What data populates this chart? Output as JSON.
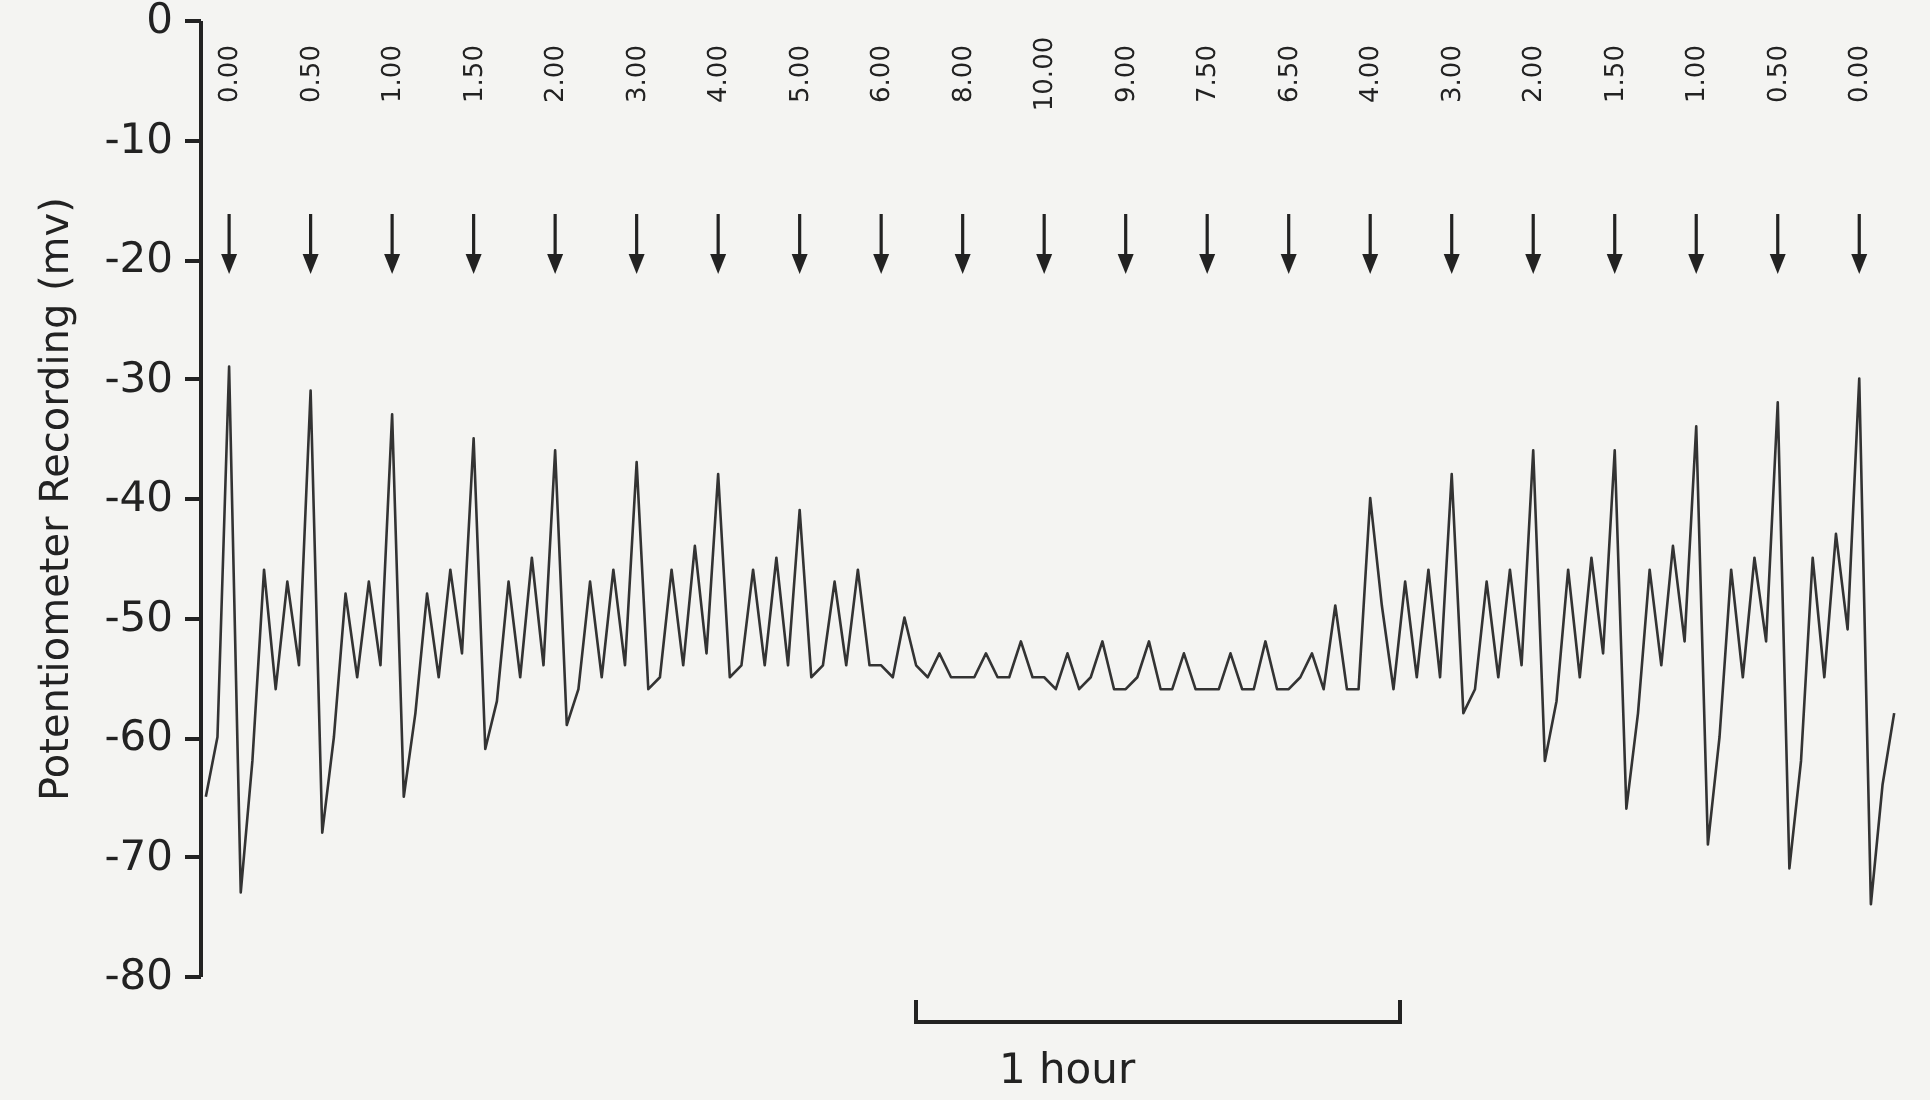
{
  "chart_data": {
    "type": "line",
    "ylabel": "Potentiometer Recording (mv)",
    "xlabel": "1 hour",
    "ylim": [
      -80,
      0
    ],
    "yticks": [
      0,
      -10,
      -20,
      -30,
      -40,
      -50,
      -60,
      -70,
      -80
    ],
    "grid": false,
    "tick_labels": "y",
    "color": "#333333",
    "annotations": [
      "0.00",
      "0.50",
      "1.00",
      "1.50",
      "2.00",
      "3.00",
      "4.00",
      "5.00",
      "6.00",
      "8.00",
      "10.00",
      "9.00",
      "7.50",
      "6.50",
      "4.00",
      "3.00",
      "2.00",
      "1.50",
      "1.00",
      "0.50",
      "0.00"
    ],
    "categories": [
      null,
      null,
      null,
      null,
      null,
      null,
      null,
      null,
      null,
      null,
      null,
      null,
      null,
      null,
      null,
      null,
      null,
      null,
      null,
      null,
      null,
      null,
      null,
      null,
      null,
      null,
      null,
      null,
      null,
      null,
      null,
      null,
      null,
      null,
      null,
      null,
      null,
      null,
      null,
      null,
      null,
      null,
      null,
      null,
      null,
      null,
      null,
      null,
      null,
      null,
      null,
      null,
      null,
      null,
      null,
      null,
      null,
      null,
      null,
      null,
      null,
      null,
      null,
      null,
      null,
      null,
      null,
      null,
      null,
      null,
      null,
      null,
      null,
      null,
      null,
      null,
      null,
      null,
      null,
      null,
      null,
      null,
      null,
      null,
      null,
      null,
      null,
      null,
      null,
      null,
      null,
      null,
      null,
      null,
      null,
      null,
      null,
      null,
      null,
      null,
      null,
      null,
      null,
      null,
      null,
      null,
      null,
      null,
      null,
      null,
      null,
      null,
      null,
      null,
      null,
      null,
      null,
      null,
      null,
      null,
      null,
      null,
      null,
      null,
      null,
      null,
      null,
      null,
      null,
      null,
      null,
      null,
      null,
      null,
      null,
      null,
      null,
      null,
      null,
      null,
      null,
      null,
      null,
      null,
      null,
      null
    ],
    "values": [
      -65,
      -60,
      -29,
      -73,
      -62,
      -46,
      -56,
      -47,
      -54,
      -31,
      -68,
      -60,
      -48,
      -55,
      -47,
      -54,
      -33,
      -65,
      -58,
      -48,
      -55,
      -46,
      -53,
      -35,
      -61,
      -57,
      -47,
      -55,
      -45,
      -54,
      -36,
      -59,
      -56,
      -47,
      -55,
      -46,
      -54,
      -37,
      -56,
      -55,
      -46,
      -54,
      -44,
      -53,
      -38,
      -55,
      -54,
      -46,
      -54,
      -45,
      -54,
      -41,
      -55,
      -54,
      -47,
      -54,
      -46,
      -54,
      -54,
      -55,
      -50,
      -54,
      -55,
      -53,
      -55,
      -55,
      -55,
      -53,
      -55,
      -55,
      -52,
      -55,
      -55,
      -56,
      -53,
      -56,
      -55,
      -52,
      -56,
      -56,
      -55,
      -52,
      -56,
      -56,
      -53,
      -56,
      -56,
      -56,
      -53,
      -56,
      -56,
      -52,
      -56,
      -56,
      -55,
      -53,
      -56,
      -49,
      -56,
      -56,
      -40,
      -49,
      -56,
      -47,
      -55,
      -46,
      -55,
      -38,
      -58,
      -56,
      -47,
      -55,
      -46,
      -54,
      -36,
      -62,
      -57,
      -46,
      -55,
      -45,
      -53,
      -36,
      -66,
      -58,
      -46,
      -54,
      -44,
      -52,
      -34,
      -69,
      -60,
      -46,
      -55,
      -45,
      -52,
      -32,
      -71,
      -62,
      -45,
      -55,
      -43,
      -51,
      -30,
      -74,
      -64,
      -58
    ]
  }
}
